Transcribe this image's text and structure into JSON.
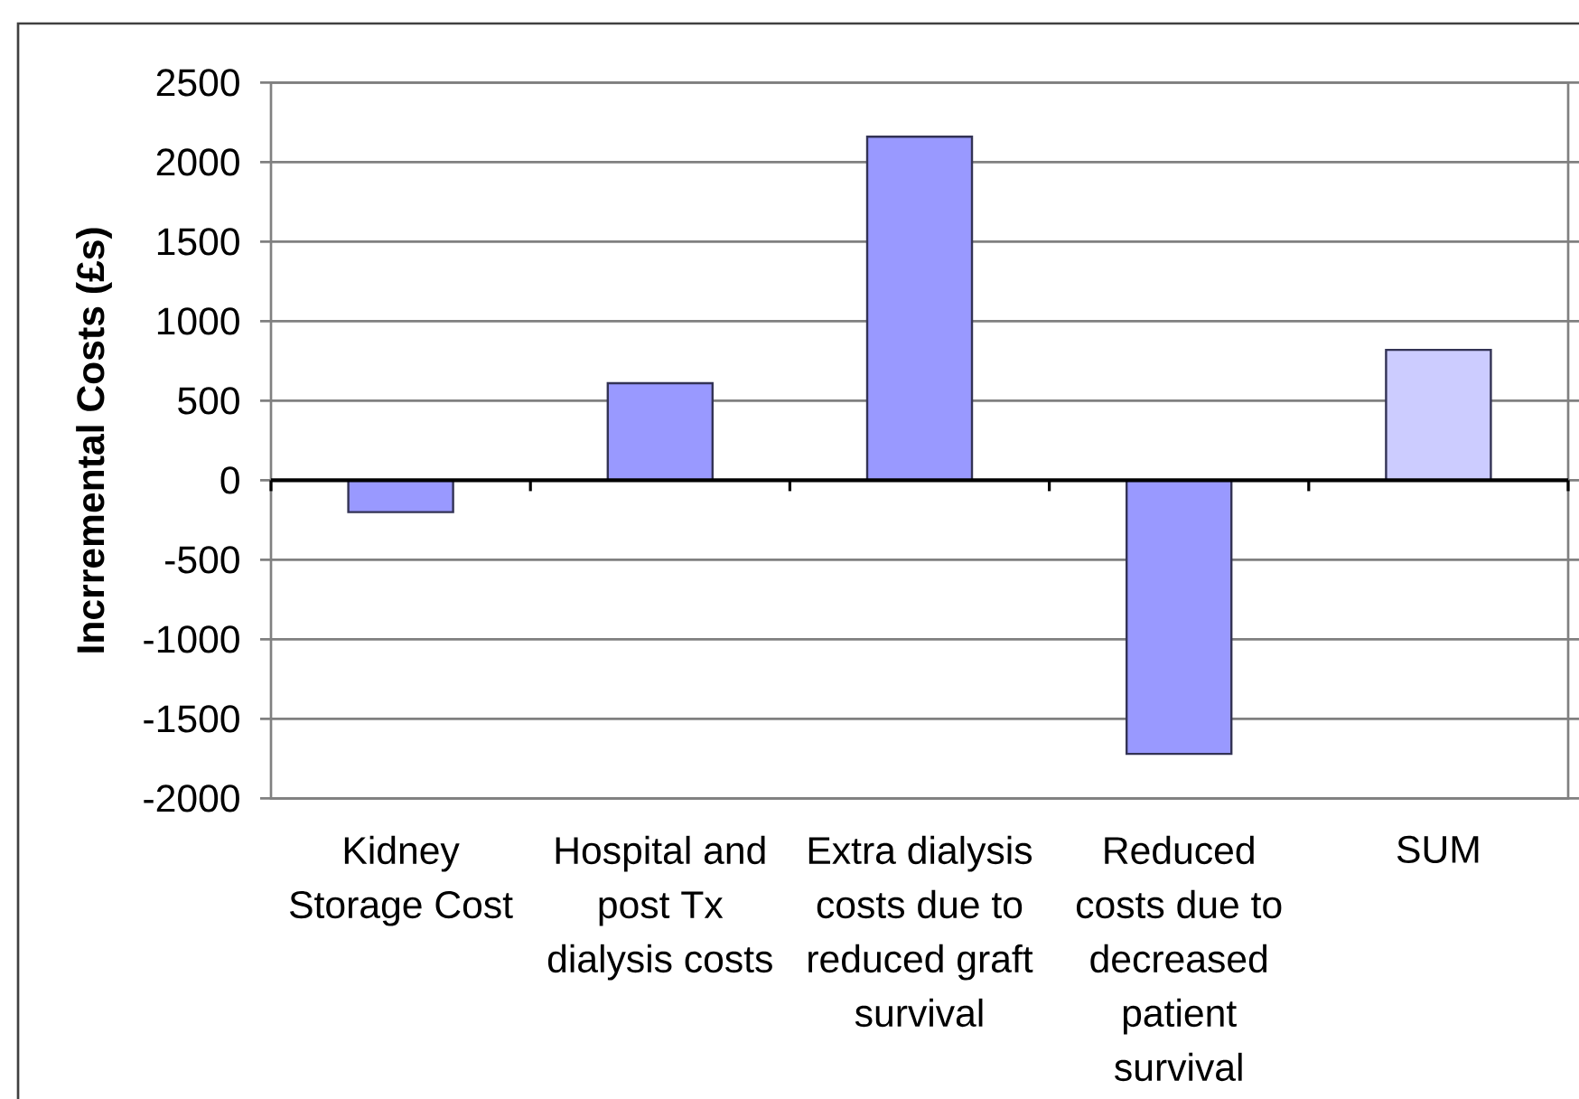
{
  "chart_data": {
    "type": "bar",
    "ylabel": "Incrremental Costs (£s)",
    "categories": [
      "Kidney Storage Cost",
      "Hospital and post Tx dialysis costs",
      "Extra dialysis costs due to reduced graft survival",
      "Reduced costs due to decreased patient survival",
      "SUM"
    ],
    "values": [
      -200,
      610,
      2160,
      -1720,
      820
    ],
    "colors": [
      "#9999ff",
      "#9999ff",
      "#9999ff",
      "#9999ff",
      "#ccccff"
    ],
    "ylim": [
      -2000,
      2500
    ],
    "yticks": [
      -2000,
      -1500,
      -1000,
      -500,
      0,
      500,
      1000,
      1500,
      2000,
      2500
    ],
    "grid": "y"
  }
}
